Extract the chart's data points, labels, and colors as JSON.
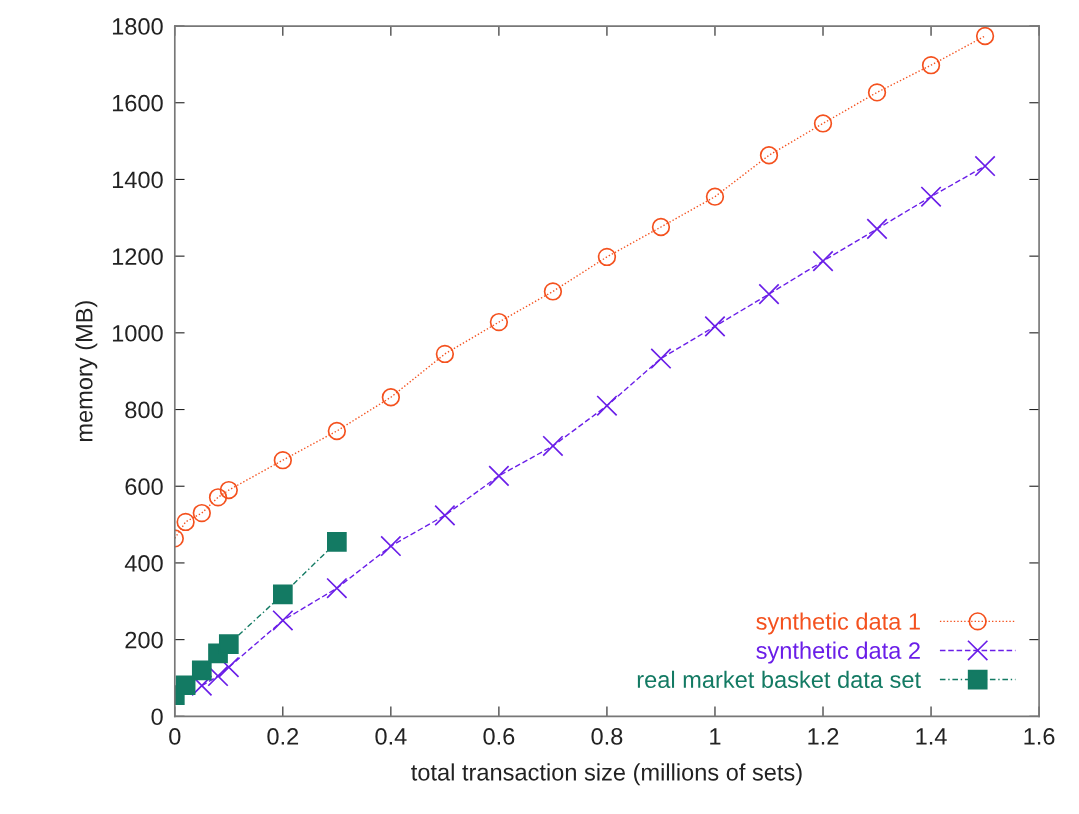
{
  "chart_data": {
    "type": "line",
    "xlabel": "total transaction size (millions of sets)",
    "ylabel": "memory (MB)",
    "xlim": [
      0,
      1.6
    ],
    "xticks": [
      0,
      0.2,
      0.4,
      0.6,
      0.8,
      1,
      1.2,
      1.4,
      1.6
    ],
    "ylim": [
      0,
      1800
    ],
    "yticks": [
      0,
      200,
      400,
      600,
      800,
      1000,
      1200,
      1400,
      1600,
      1800
    ],
    "grid": false,
    "legend": "bottom right",
    "series": [
      {
        "name": "synthetic data 1",
        "color": "#f4511e",
        "marker": "circle",
        "line_style": "dotted",
        "x": [
          0,
          0.02,
          0.05,
          0.08,
          0.1,
          0.2,
          0.3,
          0.4,
          0.5,
          0.6,
          0.7,
          0.8,
          0.9,
          1.0,
          1.1,
          1.2,
          1.3,
          1.4,
          1.5
        ],
        "values": [
          464,
          507,
          530,
          571,
          590,
          668,
          744,
          832,
          945,
          1028,
          1108,
          1198,
          1276,
          1355,
          1463,
          1546,
          1627,
          1698,
          1774
        ]
      },
      {
        "name": "synthetic data 2",
        "color": "#6a1ee8",
        "marker": "cross",
        "line_style": "dashed",
        "x": [
          0.05,
          0.08,
          0.1,
          0.2,
          0.3,
          0.4,
          0.5,
          0.6,
          0.7,
          0.8,
          0.9,
          1.0,
          1.1,
          1.2,
          1.3,
          1.4,
          1.5
        ],
        "values": [
          80,
          105,
          128,
          250,
          334,
          444,
          524,
          627,
          705,
          810,
          933,
          1017,
          1101,
          1187,
          1271,
          1355,
          1435
        ]
      },
      {
        "name": "real market basket data set",
        "color": "#137a63",
        "marker": "square",
        "line_style": "dashdot",
        "x": [
          0,
          0.02,
          0.05,
          0.08,
          0.1,
          0.2,
          0.3
        ],
        "values": [
          55,
          81,
          120,
          164,
          188,
          318,
          455
        ]
      }
    ]
  }
}
